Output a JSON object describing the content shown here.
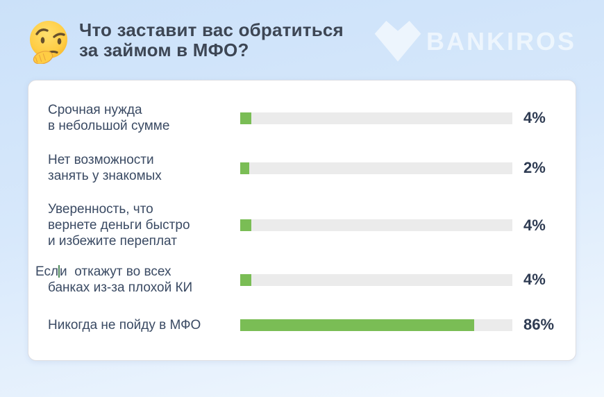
{
  "header": {
    "title_lines": [
      "Что заставит вас обратиться",
      "за займом в МФО?"
    ],
    "emoji": "thinking-face",
    "brand": "BANKIROS"
  },
  "colors": {
    "bar_fill": "#7abd55",
    "bar_track": "#ebebeb",
    "label_text": "#3a4a63",
    "value_text": "#2e3b52",
    "title_text": "#3d4654",
    "background_top": "#cbe1f9",
    "background_bottom": "#f2f8fe",
    "card_background": "#ffffff"
  },
  "chart_data": {
    "type": "bar",
    "orientation": "horizontal",
    "title": "Что заставит вас обратиться за займом в МФО?",
    "unit": "%",
    "xlim": [
      0,
      100
    ],
    "grid": false,
    "legend": false,
    "value_labels_position": "right",
    "categories": [
      "Срочная нужда в небольшой сумме",
      "Нет возможности занять у знакомых",
      "Уверенность, что вернете деньги быстро и избежите переплат",
      "Если откажут во всех банках из-за плохой КИ",
      "Никогда не пойду в МФО"
    ],
    "values": [
      4,
      2,
      4,
      4,
      86
    ],
    "rows": [
      {
        "label_lines": [
          "Срочная нужда",
          "в небольшой сумме"
        ],
        "value": 4,
        "value_label": "4%"
      },
      {
        "label_lines": [
          "Нет возможности",
          "занять у знакомых"
        ],
        "value": 2,
        "value_label": "2%"
      },
      {
        "label_lines": [
          "Уверенность, что",
          "вернете деньги быстро",
          "и избежите переплат"
        ],
        "value": 4,
        "value_label": "4%"
      },
      {
        "label_lines": [
          {
            "pre": "Есл",
            "caret": true,
            "post": "и  откажут во всех",
            "outdent": true
          },
          "банках из-за плохой КИ"
        ],
        "value": 4,
        "value_label": "4%"
      },
      {
        "label_lines": [
          "Никогда не пойду в МФО"
        ],
        "value": 86,
        "value_label": "86%"
      }
    ]
  }
}
